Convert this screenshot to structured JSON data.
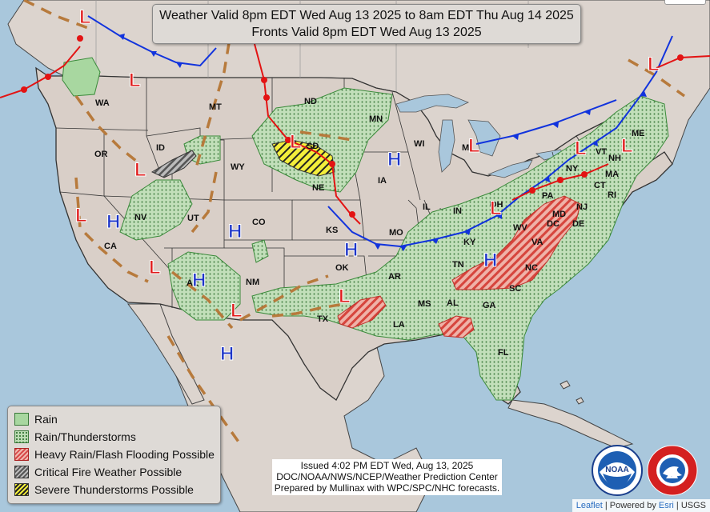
{
  "title": {
    "line1": "Weather Valid 8pm EDT Wed Aug 13 2025 to 8am EDT Thu Aug 14 2025",
    "line2": "Fronts Valid 8pm EDT Wed Aug 13 2025"
  },
  "legend": {
    "items": [
      {
        "label": "Rain",
        "swatch": "rain"
      },
      {
        "label": "Rain/Thunderstorms",
        "swatch": "thunderstorms"
      },
      {
        "label": "Heavy Rain/Flash Flooding Possible",
        "swatch": "heavy-rain"
      },
      {
        "label": "Critical Fire Weather Possible",
        "swatch": "fire"
      },
      {
        "label": "Severe Thunderstorms Possible",
        "swatch": "severe"
      }
    ]
  },
  "issued": {
    "line1": "Issued  4:02 PM EDT  Wed, Aug 13, 2025",
    "line2": "DOC/NOAA/NWS/NCEP/Weather Prediction Center",
    "line3": "Prepared by Mullinax with WPC/SPC/NHC forecasts."
  },
  "attribution": {
    "leaflet": "Leaflet",
    "powered": " | Powered by ",
    "esri": "Esri",
    "usgs": " | USGS"
  },
  "logos": {
    "noaa": "NOAA",
    "nws": "NATIONAL WEATHER SERVICE"
  },
  "states": {
    "WA": "WA",
    "OR": "OR",
    "CA": "CA",
    "ID": "ID",
    "NV": "NV",
    "UT": "UT",
    "AZ": "AZ",
    "MT": "MT",
    "WY": "WY",
    "CO": "CO",
    "NM": "NM",
    "ND": "ND",
    "SD": "SD",
    "NE": "NE",
    "KS": "KS",
    "OK": "OK",
    "TX": "TX",
    "MN": "MN",
    "IA": "IA",
    "MO": "MO",
    "AR": "AR",
    "LA": "LA",
    "WI": "WI",
    "IL": "IL",
    "MI": "MI",
    "IN": "IN",
    "KY": "KY",
    "TN": "TN",
    "MS": "MS",
    "AL": "AL",
    "GA": "GA",
    "FL": "FL",
    "SC": "SC",
    "NC": "NC",
    "VA": "VA",
    "WV": "WV",
    "OH": "OH",
    "PA": "PA",
    "NY": "NY",
    "MD": "MD",
    "DC": "DC",
    "DE": "DE",
    "NJ": "NJ",
    "CT": "CT",
    "RI": "RI",
    "MA": "MA",
    "VT": "VT",
    "NH": "NH",
    "ME": "ME"
  },
  "pressure": {
    "low": "L",
    "high": "H"
  },
  "colors": {
    "ocean": "#a9c7dc",
    "land": "#d9cfc8",
    "low": "#e01b1b",
    "high": "#1c34c8",
    "cold_front": "#1133dd",
    "warm_front": "#e31313",
    "trough": "#b87a3a"
  }
}
